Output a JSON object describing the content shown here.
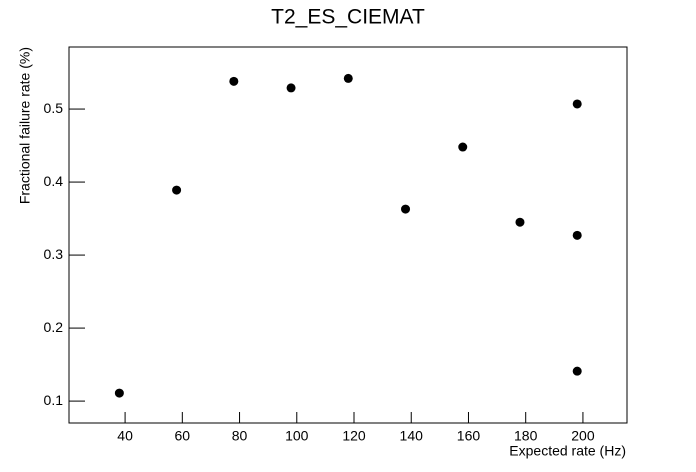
{
  "chart_data": {
    "type": "scatter",
    "title": "T2_ES_CIEMAT",
    "x_label": "Expected rate (Hz)",
    "y_label": "Fractional failure rate (%)",
    "x": [
      38,
      58,
      78,
      98,
      118,
      138,
      158,
      178,
      198,
      198,
      198
    ],
    "series": [
      {
        "color": "#000000",
        "values": [
          0.111,
          0.389,
          0.538,
          0.529,
          0.542,
          0.363,
          0.448,
          0.345,
          0.507,
          0.327,
          0.141
        ]
      }
    ],
    "xlim": [
      20.4,
      215.4
    ],
    "xticks": [
      40,
      60,
      80,
      100,
      120,
      140,
      160,
      180,
      200
    ],
    "ylim": [
      0.07,
      0.585
    ],
    "yticks": [
      0.1,
      0.2,
      0.3,
      0.4,
      0.5
    ],
    "grid": false
  }
}
